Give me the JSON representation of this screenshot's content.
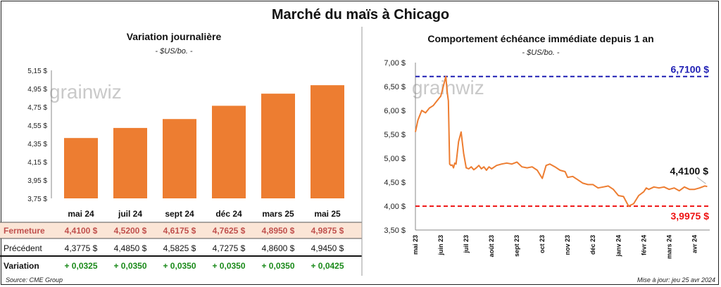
{
  "title": "Marché du maïs à Chicago",
  "source": "Source: CME Group",
  "updated": "Mise à jour: jeu 25 avr 2024",
  "watermark": "grainwiz",
  "colors": {
    "bar": "#ed7d31",
    "line": "#ed7d31",
    "high": "#1f1fb4",
    "low": "#ee1111",
    "pos": "#1a8a1a",
    "closeRow": "#fbe5d6"
  },
  "chart_data": [
    {
      "type": "bar",
      "title": "Variation journalière",
      "subtitle": "- $US/bo. -",
      "ylim": [
        3.75,
        5.15
      ],
      "yticks": [
        "5,15 $",
        "4,95 $",
        "4,75 $",
        "4,55 $",
        "4,35 $",
        "4,15 $",
        "3,95 $",
        "3,75 $"
      ],
      "categories": [
        "mai 24",
        "juil 24",
        "sept 24",
        "déc 24",
        "mars 25",
        "mai 25"
      ],
      "values": [
        4.41,
        4.52,
        4.6175,
        4.7625,
        4.895,
        4.9875
      ],
      "table": {
        "rows": [
          {
            "label": "Fermeture",
            "values": [
              "4,4100  $",
              "4,5200  $",
              "4,6175  $",
              "4,7625  $",
              "4,8950  $",
              "4,9875  $"
            ]
          },
          {
            "label": "Précédent",
            "values": [
              "4,3775  $",
              "4,4850  $",
              "4,5825  $",
              "4,7275  $",
              "4,8600  $",
              "4,9450  $"
            ]
          },
          {
            "label": "Variation",
            "values": [
              "+ 0,0325",
              "+ 0,0350",
              "+ 0,0350",
              "+ 0,0350",
              "+ 0,0350",
              "+ 0,0425"
            ]
          }
        ]
      }
    },
    {
      "type": "line",
      "title": "Comportement  échéance immédiate depuis 1 an",
      "subtitle": "- $US/bo. -",
      "ylim": [
        3.5,
        7.0
      ],
      "yticks": [
        "7,00 $",
        "6,50 $",
        "6,00 $",
        "5,50 $",
        "5,00 $",
        "4,50 $",
        "4,00 $",
        "3,50 $"
      ],
      "xticks": [
        "mai 23",
        "juin 23",
        "juil 23",
        "août 23",
        "sept 23",
        "oct 23",
        "nov 23",
        "déc 23",
        "janv 24",
        "févr 24",
        "mars 24",
        "avr 24"
      ],
      "high": {
        "value": 6.71,
        "label": "6,7100 $"
      },
      "low": {
        "value": 3.9975,
        "label": "3,9975 $"
      },
      "last": {
        "value": 4.41,
        "label": "4,4100 $"
      },
      "x": [
        0,
        0.1,
        0.25,
        0.4,
        0.55,
        0.7,
        0.85,
        1.0,
        1.1,
        1.2,
        1.25,
        1.3,
        1.35,
        1.4,
        1.45,
        1.5,
        1.55,
        1.6,
        1.7,
        1.8,
        1.9,
        2.0,
        2.1,
        2.2,
        2.3,
        2.4,
        2.5,
        2.6,
        2.7,
        2.8,
        2.9,
        3.0,
        3.2,
        3.4,
        3.6,
        3.8,
        4.0,
        4.2,
        4.4,
        4.6,
        4.8,
        5.0,
        5.15,
        5.3,
        5.5,
        5.7,
        5.9,
        6.0,
        6.2,
        6.4,
        6.6,
        6.8,
        7.0,
        7.2,
        7.4,
        7.6,
        7.8,
        8.0,
        8.2,
        8.4,
        8.6,
        8.8,
        9.0,
        9.1,
        9.2,
        9.4,
        9.6,
        9.8,
        10.0,
        10.2,
        10.4,
        10.6,
        10.8,
        11.0,
        11.2,
        11.4,
        11.5
      ],
      "values": [
        5.55,
        5.8,
        6.0,
        5.95,
        6.05,
        6.1,
        6.2,
        6.3,
        6.5,
        6.71,
        6.4,
        6.2,
        4.88,
        4.85,
        4.86,
        4.8,
        4.9,
        4.88,
        5.35,
        5.55,
        5.1,
        4.8,
        4.78,
        4.82,
        4.76,
        4.8,
        4.85,
        4.78,
        4.82,
        4.75,
        4.82,
        4.78,
        4.85,
        4.88,
        4.9,
        4.88,
        4.92,
        4.82,
        4.8,
        4.82,
        4.75,
        4.58,
        4.85,
        4.88,
        4.82,
        4.75,
        4.72,
        4.6,
        4.62,
        4.55,
        4.48,
        4.45,
        4.45,
        4.38,
        4.4,
        4.42,
        4.35,
        4.22,
        4.2,
        4.0,
        4.05,
        4.22,
        4.3,
        4.38,
        4.35,
        4.4,
        4.38,
        4.4,
        4.35,
        4.38,
        4.32,
        4.4,
        4.35,
        4.35,
        4.38,
        4.42,
        4.41
      ]
    }
  ]
}
